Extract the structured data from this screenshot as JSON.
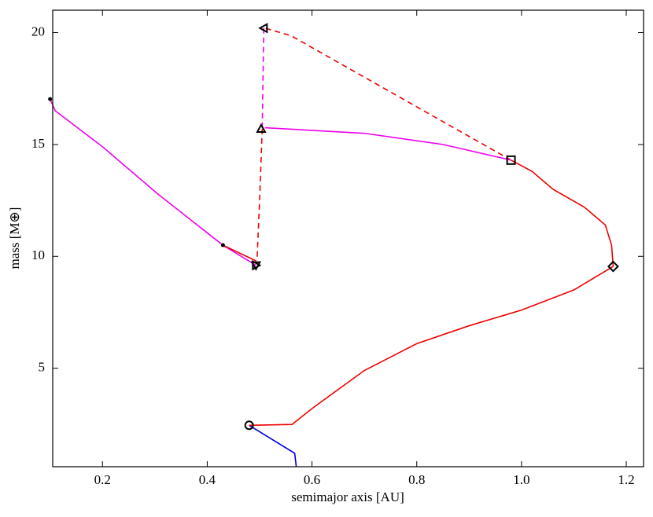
{
  "chart_data": {
    "type": "line",
    "xlabel": "semimajor axis [AU]",
    "ylabel": "mass [M⊕]",
    "xlim": [
      0.105,
      1.233
    ],
    "ylim": [
      0.6,
      21
    ],
    "xticks": [
      0.2,
      0.4,
      0.6,
      0.8,
      {
        "value": 1,
        "label": "1.0"
      },
      1.2
    ],
    "yticks": [
      5,
      10,
      15,
      20
    ],
    "series": [
      {
        "color": "#0000dd",
        "dash": false,
        "x": [
          0.48,
          0.567,
          0.57
        ],
        "values": [
          2.45,
          1.2,
          0.6
        ]
      },
      {
        "color": "#ee0000",
        "dash": false,
        "x": [
          0.48,
          0.562,
          0.6,
          0.7,
          0.8,
          0.9,
          1.0,
          1.1,
          1.175
        ],
        "values": [
          2.45,
          2.49,
          3.2,
          4.9,
          6.1,
          6.9,
          7.6,
          8.5,
          9.55
        ]
      },
      {
        "color": "#ee0000",
        "dash": false,
        "x": [
          1.175,
          1.172,
          1.16,
          1.12,
          1.06,
          1.02,
          0.98
        ],
        "values": [
          9.55,
          10.5,
          11.4,
          12.2,
          13.0,
          13.8,
          14.3
        ]
      },
      {
        "color": "#ee0000",
        "dash": true,
        "x": [
          0.98,
          0.56,
          0.51
        ],
        "values": [
          14.3,
          19.86,
          20.2
        ]
      },
      {
        "color": "#ee0000",
        "dash": true,
        "x": [
          0.505,
          0.5,
          0.495
        ],
        "values": [
          15.7,
          12.5,
          9.8
        ]
      },
      {
        "color": "#ee00ee",
        "dash": true,
        "x": [
          0.508,
          0.505
        ],
        "values": [
          20.2,
          15.7
        ]
      },
      {
        "color": "#ee00ee",
        "dash": false,
        "x": [
          0.98,
          0.85,
          0.7,
          0.51
        ],
        "values": [
          14.3,
          15.0,
          15.5,
          15.75
        ]
      },
      {
        "color": "#ee00ee",
        "dash": false,
        "x": [
          0.1,
          0.11,
          0.2,
          0.305,
          0.43,
          0.493
        ],
        "values": [
          17.03,
          16.5,
          14.9,
          12.8,
          10.5,
          9.6
        ]
      },
      {
        "color": "#ee0000",
        "dash": false,
        "x": [
          0.43,
          0.493
        ],
        "values": [
          10.5,
          9.8
        ]
      }
    ],
    "markers": [
      {
        "shape": "dot",
        "x": 0.1,
        "y": 17.03
      },
      {
        "shape": "dot",
        "x": 0.43,
        "y": 10.5
      },
      {
        "shape": "circle",
        "x": 0.48,
        "y": 2.45
      },
      {
        "shape": "diamond",
        "x": 1.175,
        "y": 9.55
      },
      {
        "shape": "square",
        "x": 0.98,
        "y": 14.3
      },
      {
        "shape": "triangle-up",
        "x": 0.503,
        "y": 15.7
      },
      {
        "shape": "triangle-left",
        "x": 0.508,
        "y": 20.2
      },
      {
        "shape": "triangle-down",
        "x": 0.493,
        "y": 9.6
      },
      {
        "shape": "triangle-right",
        "x": 0.493,
        "y": 9.6
      }
    ]
  }
}
